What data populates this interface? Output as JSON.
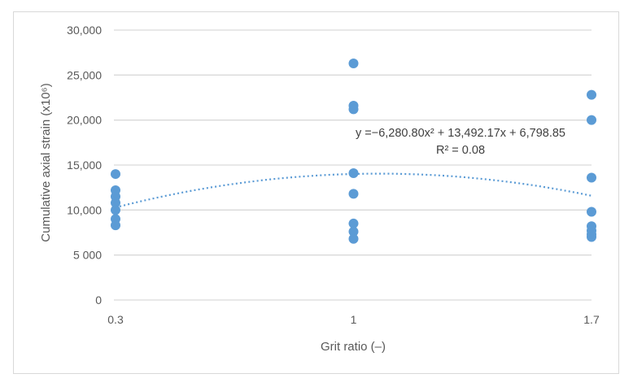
{
  "chart_data": {
    "type": "scatter",
    "title": "",
    "xlabel": "Grit ratio (–)",
    "ylabel": "Cumulative axial strain (x10⁶)",
    "xlim": [
      0.3,
      1.7
    ],
    "ylim": [
      0,
      30000
    ],
    "x_ticks": [
      "0.3",
      "1",
      "1.7"
    ],
    "y_ticks": [
      "0",
      "5 000",
      "10,000",
      "15,000",
      "20,000",
      "25,000",
      "30,000"
    ],
    "y_tick_values": [
      0,
      5000,
      10000,
      15000,
      20000,
      25000,
      30000
    ],
    "grid": {
      "horizontal": true,
      "vertical": false
    },
    "legend": null,
    "marker_color": "#5b9bd5",
    "series": [
      {
        "name": "Cumulative axial strain",
        "points": [
          {
            "x": 0.3,
            "y": 14000
          },
          {
            "x": 0.3,
            "y": 12200
          },
          {
            "x": 0.3,
            "y": 11500
          },
          {
            "x": 0.3,
            "y": 10800
          },
          {
            "x": 0.3,
            "y": 10000
          },
          {
            "x": 0.3,
            "y": 9000
          },
          {
            "x": 0.3,
            "y": 8300
          },
          {
            "x": 1,
            "y": 26300
          },
          {
            "x": 1,
            "y": 21600
          },
          {
            "x": 1,
            "y": 21200
          },
          {
            "x": 1,
            "y": 14100
          },
          {
            "x": 1,
            "y": 11800
          },
          {
            "x": 1,
            "y": 8500
          },
          {
            "x": 1,
            "y": 7600
          },
          {
            "x": 1,
            "y": 6800
          },
          {
            "x": 1.7,
            "y": 22800
          },
          {
            "x": 1.7,
            "y": 20000
          },
          {
            "x": 1.7,
            "y": 13600
          },
          {
            "x": 1.7,
            "y": 9800
          },
          {
            "x": 1.7,
            "y": 8200
          },
          {
            "x": 1.7,
            "y": 7700
          },
          {
            "x": 1.7,
            "y": 7300
          },
          {
            "x": 1.7,
            "y": 7000
          }
        ]
      }
    ],
    "trendline": {
      "type": "polynomial",
      "order": 2,
      "coefficients": {
        "a": -6280.8,
        "b": 13492.17,
        "c": 6798.85
      },
      "style": "dotted",
      "color": "#5b9bd5",
      "equation_label": "y =−6,280.80x² + 13,492.17x + 6,798.85",
      "r2_label": "R² = 0.08"
    }
  }
}
